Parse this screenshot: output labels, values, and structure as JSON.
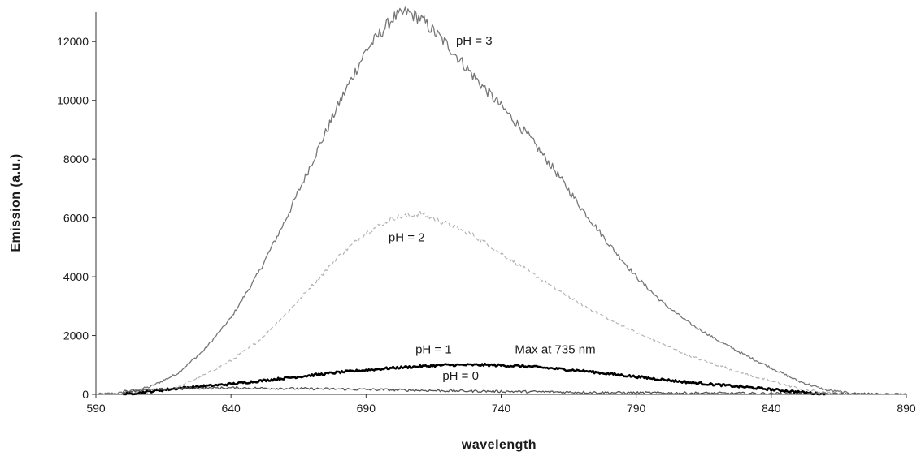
{
  "chart_data": {
    "type": "line",
    "title": "",
    "xlabel": "wavelength",
    "ylabel": "Emission (a.u.)",
    "xlim": [
      590,
      890
    ],
    "ylim": [
      0,
      13000
    ],
    "xticks": [
      590,
      640,
      690,
      740,
      790,
      840,
      890
    ],
    "yticks": [
      0,
      2000,
      4000,
      6000,
      8000,
      10000,
      12000
    ],
    "grid": false,
    "legend": "none",
    "series": [
      {
        "name": "pH = 3",
        "color": "#777777",
        "style": "solid",
        "x": [
          590,
          600,
          610,
          620,
          630,
          640,
          650,
          660,
          670,
          680,
          690,
          700,
          705,
          710,
          720,
          730,
          740,
          750,
          760,
          770,
          780,
          790,
          800,
          810,
          820,
          830,
          840,
          850,
          860,
          870,
          880,
          890
        ],
        "y": [
          0,
          50,
          250,
          700,
          1500,
          2600,
          4100,
          5900,
          7900,
          9900,
          11700,
          12800,
          13000,
          12800,
          11900,
          10800,
          9800,
          8800,
          7600,
          6300,
          5100,
          4000,
          3100,
          2400,
          1850,
          1350,
          900,
          450,
          150,
          30,
          0,
          0
        ]
      },
      {
        "name": "pH = 2",
        "color": "#b3b3b3",
        "style": "dashed",
        "x": [
          600,
          610,
          620,
          630,
          640,
          650,
          660,
          670,
          680,
          690,
          700,
          710,
          720,
          730,
          740,
          750,
          760,
          770,
          780,
          790,
          800,
          810,
          820,
          830,
          840,
          850,
          860,
          870
        ],
        "y": [
          0,
          80,
          250,
          650,
          1150,
          1800,
          2700,
          3700,
          4700,
          5500,
          6000,
          6150,
          5800,
          5400,
          4800,
          4200,
          3600,
          3050,
          2550,
          2100,
          1700,
          1300,
          1000,
          700,
          450,
          200,
          50,
          0
        ]
      },
      {
        "name": "pH = 1",
        "color": "#000000",
        "style": "solid-bold",
        "x": [
          600,
          620,
          640,
          660,
          680,
          700,
          720,
          735,
          750,
          770,
          790,
          810,
          830,
          850,
          860
        ],
        "y": [
          0,
          200,
          350,
          550,
          750,
          900,
          1000,
          1000,
          950,
          800,
          600,
          400,
          250,
          80,
          0
        ]
      },
      {
        "name": "pH = 0",
        "color": "#555555",
        "style": "solid",
        "x": [
          600,
          620,
          640,
          660,
          680,
          700,
          720,
          740,
          760,
          780,
          800,
          820,
          840,
          860,
          880
        ],
        "y": [
          100,
          200,
          220,
          200,
          180,
          150,
          120,
          100,
          80,
          60,
          50,
          40,
          30,
          20,
          10
        ]
      }
    ],
    "annotations": [
      {
        "text": "pH = 3",
        "x": 730,
        "y": 11900
      },
      {
        "text": "pH = 2",
        "x": 705,
        "y": 5200
      },
      {
        "text": "pH = 1",
        "x": 715,
        "y": 1400
      },
      {
        "text": "Max at 735 nm",
        "x": 760,
        "y": 1400
      },
      {
        "text": "pH = 0",
        "x": 725,
        "y": 500
      }
    ]
  }
}
